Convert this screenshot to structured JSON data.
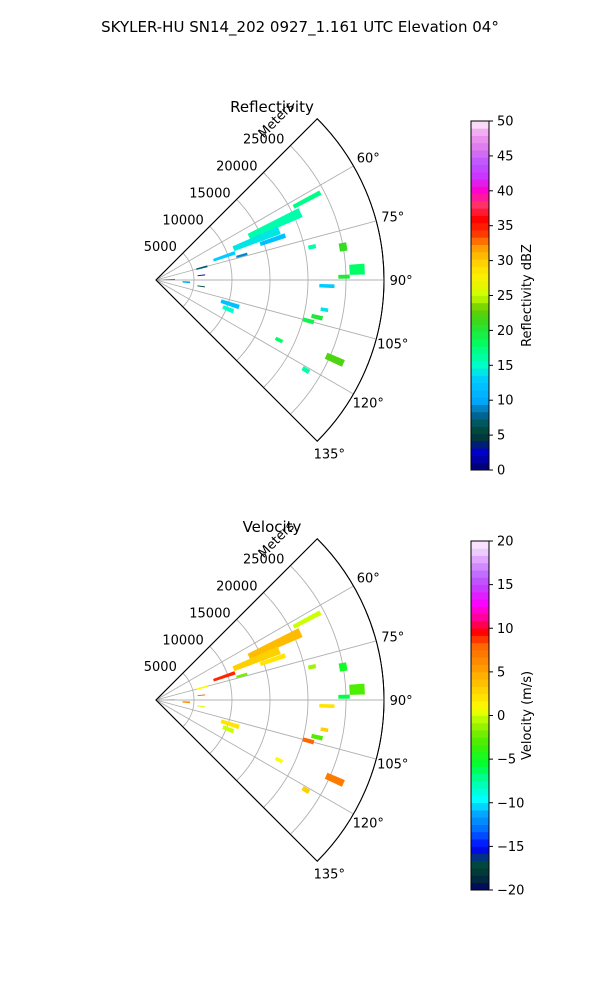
{
  "figure": {
    "suptitle": "SKYLER-HU  SN14_202  0927_1.161 UTC Elevation 04°",
    "range_label": "Meters"
  },
  "chart_data": [
    {
      "type": "polar-sector",
      "title": "Reflectivity",
      "theta_range_deg": [
        45,
        135
      ],
      "r_range_m": [
        0,
        30000
      ],
      "range_ticks": [
        5000,
        10000,
        15000,
        20000,
        25000
      ],
      "range_tick_labels": [
        "5000",
        "10000",
        "15000",
        "20000",
        "25000"
      ],
      "azimuth_ticks": [
        60,
        75,
        90,
        105,
        120,
        135
      ],
      "azimuth_tick_labels": [
        "60°",
        "75°",
        "90°",
        "105°",
        "120°",
        "135°"
      ],
      "grid": true,
      "colorbar": {
        "label": "Reflectivity dBZ",
        "range": [
          0,
          50
        ],
        "ticks": [
          0,
          5,
          10,
          15,
          20,
          25,
          30,
          35,
          40,
          45,
          50
        ],
        "tick_labels": [
          "0",
          "5",
          "10",
          "15",
          "20",
          "25",
          "30",
          "35",
          "40",
          "45",
          "50"
        ],
        "colormap": "pyart_NWSRef"
      },
      "echoes": [
        {
          "az": 62,
          "r0": 20500,
          "r1": 24500,
          "w": 1.5,
          "value": 17
        },
        {
          "az": 65,
          "r0": 13500,
          "r1": 21000,
          "w": 3.5,
          "value": 16
        },
        {
          "az": 68,
          "r0": 11000,
          "r1": 17500,
          "w": 3.5,
          "value": 14
        },
        {
          "az": 71,
          "r0": 14500,
          "r1": 18000,
          "w": 2.0,
          "value": 12
        },
        {
          "az": 71,
          "r0": 8000,
          "r1": 11000,
          "w": 2.5,
          "value": 13
        },
        {
          "az": 74,
          "r0": 11000,
          "r1": 12500,
          "w": 1.5,
          "value": 9
        },
        {
          "az": 75,
          "r0": 5500,
          "r1": 7000,
          "w": 2.0,
          "value": 7
        },
        {
          "az": 78,
          "r0": 20500,
          "r1": 21500,
          "w": 1.5,
          "value": 16
        },
        {
          "az": 80,
          "r0": 24500,
          "r1": 25500,
          "w": 2.5,
          "value": 21
        },
        {
          "az": 84,
          "r0": 5500,
          "r1": 6500,
          "w": 1.2,
          "value": 3
        },
        {
          "az": 87,
          "r0": 25500,
          "r1": 27500,
          "w": 3.0,
          "value": 18
        },
        {
          "az": 89,
          "r0": 24000,
          "r1": 25500,
          "w": 1.2,
          "value": 20
        },
        {
          "az": 92,
          "r0": 21500,
          "r1": 23500,
          "w": 1.2,
          "value": 13
        },
        {
          "az": 88,
          "r0": 1000,
          "r1": 2500,
          "w": 3.0,
          "value": 9
        },
        {
          "az": 94,
          "r0": 3500,
          "r1": 4500,
          "w": 3.0,
          "value": 10
        },
        {
          "az": 98,
          "r0": 5500,
          "r1": 6500,
          "w": 1.2,
          "value": 6
        },
        {
          "az": 100,
          "r0": 22000,
          "r1": 23000,
          "w": 1.2,
          "value": 14
        },
        {
          "az": 103,
          "r0": 21000,
          "r1": 22500,
          "w": 1.5,
          "value": 20
        },
        {
          "az": 105,
          "r0": 20000,
          "r1": 21500,
          "w": 1.5,
          "value": 19
        },
        {
          "az": 108,
          "r0": 9000,
          "r1": 11500,
          "w": 3.0,
          "value": 12
        },
        {
          "az": 112,
          "r0": 9500,
          "r1": 11000,
          "w": 3.0,
          "value": 15
        },
        {
          "az": 114,
          "r0": 24500,
          "r1": 27000,
          "w": 2.0,
          "value": 22
        },
        {
          "az": 116,
          "r0": 17500,
          "r1": 18500,
          "w": 1.5,
          "value": 18
        },
        {
          "az": 121,
          "r0": 22500,
          "r1": 23500,
          "w": 1.5,
          "value": 16
        }
      ]
    },
    {
      "type": "polar-sector",
      "title": "Velocity",
      "theta_range_deg": [
        45,
        135
      ],
      "r_range_m": [
        0,
        30000
      ],
      "range_ticks": [
        5000,
        10000,
        15000,
        20000,
        25000
      ],
      "range_tick_labels": [
        "5000",
        "10000",
        "15000",
        "20000",
        "25000"
      ],
      "azimuth_ticks": [
        60,
        75,
        90,
        105,
        120,
        135
      ],
      "azimuth_tick_labels": [
        "60°",
        "75°",
        "90°",
        "105°",
        "120°",
        "135°"
      ],
      "grid": true,
      "colorbar": {
        "label": "Velocity (m/s)",
        "range": [
          -20,
          20
        ],
        "ticks": [
          -20,
          -15,
          -10,
          -5,
          0,
          5,
          10,
          15,
          20
        ],
        "tick_labels": [
          "−20",
          "−15",
          "−10",
          "−5",
          "0",
          "5",
          "10",
          "15",
          "20"
        ],
        "colormap": "pyart_BuDRd18"
      },
      "echoes": [
        {
          "az": 62,
          "r0": 20500,
          "r1": 24500,
          "w": 1.5,
          "value": 0
        },
        {
          "az": 65,
          "r0": 13500,
          "r1": 21000,
          "w": 3.5,
          "value": 4
        },
        {
          "az": 68,
          "r0": 11000,
          "r1": 17500,
          "w": 3.5,
          "value": 3
        },
        {
          "az": 71,
          "r0": 14500,
          "r1": 18000,
          "w": 2.0,
          "value": 2
        },
        {
          "az": 71,
          "r0": 8000,
          "r1": 11000,
          "w": 2.5,
          "value": 9
        },
        {
          "az": 74,
          "r0": 11000,
          "r1": 12500,
          "w": 1.5,
          "value": -2
        },
        {
          "az": 75,
          "r0": 5500,
          "r1": 7000,
          "w": 2.0,
          "value": 1
        },
        {
          "az": 78,
          "r0": 20500,
          "r1": 21500,
          "w": 1.5,
          "value": -1
        },
        {
          "az": 80,
          "r0": 24500,
          "r1": 25500,
          "w": 2.5,
          "value": -5
        },
        {
          "az": 84,
          "r0": 5500,
          "r1": 6500,
          "w": 1.2,
          "value": 8
        },
        {
          "az": 87,
          "r0": 25500,
          "r1": 27500,
          "w": 3.0,
          "value": -3
        },
        {
          "az": 89,
          "r0": 24000,
          "r1": 25500,
          "w": 1.2,
          "value": -6
        },
        {
          "az": 92,
          "r0": 21500,
          "r1": 23500,
          "w": 1.2,
          "value": 2
        },
        {
          "az": 88,
          "r0": 1000,
          "r1": 2500,
          "w": 3.0,
          "value": -1
        },
        {
          "az": 94,
          "r0": 3500,
          "r1": 4500,
          "w": 3.0,
          "value": 6
        },
        {
          "az": 98,
          "r0": 5500,
          "r1": 6500,
          "w": 1.2,
          "value": 0
        },
        {
          "az": 100,
          "r0": 22000,
          "r1": 23000,
          "w": 1.2,
          "value": 3
        },
        {
          "az": 103,
          "r0": 21000,
          "r1": 22500,
          "w": 1.5,
          "value": -3
        },
        {
          "az": 105,
          "r0": 20000,
          "r1": 21500,
          "w": 1.5,
          "value": 8
        },
        {
          "az": 108,
          "r0": 9000,
          "r1": 11500,
          "w": 3.0,
          "value": 2
        },
        {
          "az": 112,
          "r0": 9500,
          "r1": 11000,
          "w": 3.0,
          "value": 0
        },
        {
          "az": 114,
          "r0": 24500,
          "r1": 27000,
          "w": 2.0,
          "value": 7
        },
        {
          "az": 116,
          "r0": 17500,
          "r1": 18500,
          "w": 1.5,
          "value": 1
        },
        {
          "az": 121,
          "r0": 22500,
          "r1": 23500,
          "w": 1.5,
          "value": 3
        }
      ]
    }
  ]
}
